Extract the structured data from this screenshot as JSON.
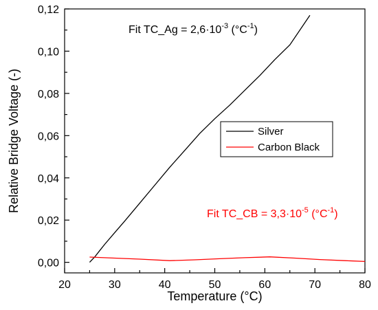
{
  "chart_data": {
    "type": "line",
    "xlabel": "Temperature (°C)",
    "ylabel": "Relative Bridge Voltage (-)",
    "xlim": [
      20,
      80
    ],
    "ylim": [
      -0.005,
      0.12
    ],
    "x_ticks": [
      20,
      30,
      40,
      50,
      60,
      70,
      80
    ],
    "x_tick_labels": [
      "20",
      "30",
      "40",
      "50",
      "60",
      "70",
      "80"
    ],
    "y_ticks": [
      0,
      0.02,
      0.04,
      0.06,
      0.08,
      0.1,
      0.12
    ],
    "y_tick_labels": [
      "0,00",
      "0,02",
      "0,04",
      "0,06",
      "0,08",
      "0,10",
      "0,12"
    ],
    "grid": false,
    "legend_position": "center-right",
    "series": [
      {
        "name": "Silver",
        "color": "#000000",
        "x": [
          25,
          26,
          27,
          28,
          30,
          32,
          35,
          38,
          41,
          44,
          47,
          50,
          53,
          56,
          59,
          62,
          65,
          69
        ],
        "y": [
          0.0,
          0.0025,
          0.0055,
          0.0085,
          0.014,
          0.0195,
          0.028,
          0.0365,
          0.045,
          0.053,
          0.061,
          0.068,
          0.0745,
          0.0815,
          0.0885,
          0.096,
          0.103,
          0.117
        ]
      },
      {
        "name": "Carbon Black",
        "color": "#ff0000",
        "x": [
          25,
          30,
          35,
          41,
          46,
          51,
          56,
          61,
          66,
          71,
          76,
          80
        ],
        "y": [
          0.0025,
          0.002,
          0.0015,
          0.0008,
          0.0012,
          0.0017,
          0.0022,
          0.0026,
          0.002,
          0.0013,
          0.0008,
          0.0004
        ]
      }
    ],
    "annotations": [
      {
        "id": "ag",
        "color": "#000000",
        "prefix": "Fit TC_Ag = 2,6·10",
        "exp": "-3",
        "mid": " (°C",
        "exp2": "-1",
        "suffix": ")"
      },
      {
        "id": "cb",
        "color": "#ff0000",
        "prefix": "Fit TC_CB = 3,3·10",
        "exp": "-5",
        "mid": " (°C",
        "exp2": "-1",
        "suffix": ")"
      }
    ]
  }
}
